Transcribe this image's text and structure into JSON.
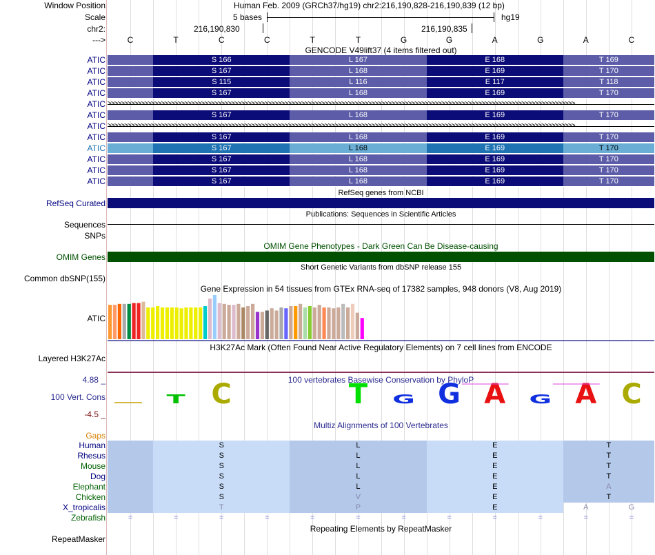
{
  "header": {
    "window_position_label": "Window Position",
    "scale_label": "Scale",
    "chr_label": "chr2:",
    "arrow_label": "--->",
    "assembly_text": "Human Feb. 2009 (GRCh37/hg19)   chr2:216,190,828-216,190,839 (12 bp)",
    "scale_text": "5 bases",
    "scale_db": "hg19",
    "pos1": "216,190,830",
    "pos2": "216,190,835"
  },
  "bases": [
    "C",
    "T",
    "C",
    "C",
    "T",
    "T",
    "G",
    "G",
    "A",
    "G",
    "A",
    "C"
  ],
  "gencode": {
    "title": "GENCODE V49lift37 (4 items filtered out)",
    "rows": [
      {
        "label": "ATIC",
        "type": "cds",
        "codons": [
          "S 166",
          "L 167",
          "E 168",
          "T 169"
        ]
      },
      {
        "label": "ATIC",
        "type": "cds",
        "codons": [
          "S 167",
          "L 168",
          "E 169",
          "T 170"
        ]
      },
      {
        "label": "ATIC",
        "type": "cds",
        "codons": [
          "S 115",
          "L 116",
          "E 117",
          "T 118"
        ]
      },
      {
        "label": "ATIC",
        "type": "cds",
        "codons": [
          "S 167",
          "L 168",
          "E 169",
          "T 170"
        ]
      },
      {
        "label": "ATIC",
        "type": "intron",
        "codons": []
      },
      {
        "label": "ATIC",
        "type": "cds",
        "codons": [
          "S 167",
          "L 168",
          "E 169",
          "T 170"
        ]
      },
      {
        "label": "ATIC",
        "type": "intron",
        "codons": []
      },
      {
        "label": "ATIC",
        "type": "cds",
        "codons": [
          "S 167",
          "L 168",
          "E 169",
          "T 170"
        ]
      },
      {
        "label": "ATIC",
        "type": "highlight",
        "codons": [
          "S 167",
          "L 168",
          "E 169",
          "T 170"
        ]
      },
      {
        "label": "ATIC",
        "type": "cds",
        "codons": [
          "S 167",
          "L 168",
          "E 169",
          "T 170"
        ]
      },
      {
        "label": "ATIC",
        "type": "cds",
        "codons": [
          "S 167",
          "L 168",
          "E 169",
          "T 170"
        ]
      },
      {
        "label": "ATIC",
        "type": "cds",
        "codons": [
          "S 167",
          "L 168",
          "E 169",
          "T 170"
        ]
      }
    ]
  },
  "refseq": {
    "title": "RefSeq genes from NCBI",
    "label": "RefSeq Curated"
  },
  "publications": {
    "title": "Publications: Sequences in Scientific Articles",
    "label": "Sequences"
  },
  "snps_label": "SNPs",
  "omim": {
    "title": "OMIM Gene Phenotypes - Dark Green Can Be Disease-causing",
    "label": "OMIM Genes"
  },
  "dbsnp": {
    "title": "Short Genetic Variants from dbSNP release 155",
    "label": "Common dbSNP(155)"
  },
  "gtex": {
    "title": "Gene Expression in 54 tissues from GTEx RNA-seq of 17382 samples, 948 donors (V8, Aug 2019)",
    "label": "ATIC",
    "bars": [
      {
        "v": 0.78,
        "c": "#ff9933"
      },
      {
        "v": 0.78,
        "c": "#ff9966"
      },
      {
        "v": 0.8,
        "c": "#ff6600"
      },
      {
        "v": 0.8,
        "c": "#aaaaaa"
      },
      {
        "v": 0.8,
        "c": "#008b45"
      },
      {
        "v": 0.82,
        "c": "#ee2222"
      },
      {
        "v": 0.82,
        "c": "#ee2222"
      },
      {
        "v": 0.85,
        "c": "#ddbb99"
      },
      {
        "v": 0.72,
        "c": "#eeee00"
      },
      {
        "v": 0.72,
        "c": "#eeee00"
      },
      {
        "v": 0.75,
        "c": "#eeee00"
      },
      {
        "v": 0.72,
        "c": "#eeee00"
      },
      {
        "v": 0.72,
        "c": "#eeee00"
      },
      {
        "v": 0.72,
        "c": "#eeee00"
      },
      {
        "v": 0.72,
        "c": "#eeee00"
      },
      {
        "v": 0.7,
        "c": "#eeee00"
      },
      {
        "v": 0.72,
        "c": "#eeee00"
      },
      {
        "v": 0.72,
        "c": "#eeee00"
      },
      {
        "v": 0.72,
        "c": "#eeee00"
      },
      {
        "v": 0.72,
        "c": "#eeee00"
      },
      {
        "v": 0.75,
        "c": "#00cccc"
      },
      {
        "v": 0.92,
        "c": "#ddbbcc"
      },
      {
        "v": 1.0,
        "c": "#99ccff"
      },
      {
        "v": 0.82,
        "c": "#ddbbcc"
      },
      {
        "v": 0.8,
        "c": "#ccaa99"
      },
      {
        "v": 0.78,
        "c": "#ccaa99"
      },
      {
        "v": 0.78,
        "c": "#ddbbcc"
      },
      {
        "v": 0.8,
        "c": "#ccaa99"
      },
      {
        "v": 0.72,
        "c": "#aa8866"
      },
      {
        "v": 0.75,
        "c": "#ccaa99"
      },
      {
        "v": 0.8,
        "c": "#ccaa99"
      },
      {
        "v": 0.62,
        "c": "#9933cc"
      },
      {
        "v": 0.62,
        "c": "#ccaa99"
      },
      {
        "v": 0.65,
        "c": "#666666"
      },
      {
        "v": 0.7,
        "c": "#ccaa99"
      },
      {
        "v": 0.65,
        "c": "#ccaa99"
      },
      {
        "v": 0.72,
        "c": "#aaaaaa"
      },
      {
        "v": 0.7,
        "c": "#6666ff"
      },
      {
        "v": 0.75,
        "c": "#ccaa99"
      },
      {
        "v": 0.75,
        "c": "#ff9900"
      },
      {
        "v": 0.8,
        "c": "#ccaa99"
      },
      {
        "v": 0.72,
        "c": "#aaddaa"
      },
      {
        "v": 0.75,
        "c": "#88cc33"
      },
      {
        "v": 0.72,
        "c": "#ccaa99"
      },
      {
        "v": 0.78,
        "c": "#ccaa99"
      },
      {
        "v": 0.72,
        "c": "#ff8855"
      },
      {
        "v": 0.72,
        "c": "#ccaa99"
      },
      {
        "v": 0.7,
        "c": "#ccaa99"
      },
      {
        "v": 0.72,
        "c": "#ccaa99"
      },
      {
        "v": 0.8,
        "c": "#bbbbbb"
      },
      {
        "v": 0.72,
        "c": "#ccaa99"
      },
      {
        "v": 0.8,
        "c": "#eeccbb"
      },
      {
        "v": 0.6,
        "c": "#ccaa99"
      },
      {
        "v": 0.48,
        "c": "#ff00ff"
      }
    ]
  },
  "h3k27ac": {
    "title": "H3K27Ac Mark (Often Found Near Active Regulatory Elements) on 7 cell lines from ENCODE",
    "label": "Layered H3K27Ac"
  },
  "cons": {
    "title": "100 vertebrates Basewise Conservation by PhyloP",
    "label": "100 Vert. Cons",
    "max": "4.88 _",
    "min": "-4.5 _",
    "logo": [
      {
        "b": "",
        "col": "#c8a000",
        "s": 0.05,
        "neg": false
      },
      {
        "b": "T",
        "col": "#00c000",
        "s": 0.45,
        "neg": false
      },
      {
        "b": "C",
        "col": "#aaaa00",
        "s": 1.0,
        "neg": false
      },
      {
        "b": "",
        "col": "#aaaa00",
        "s": 0,
        "neg": false
      },
      {
        "b": "",
        "col": "#aaaa00",
        "s": 0,
        "neg": false
      },
      {
        "b": "T",
        "col": "#00e000",
        "s": 1.0,
        "neg": false
      },
      {
        "b": "G",
        "col": "#1030e0",
        "s": 0.45,
        "neg": false
      },
      {
        "b": "G",
        "col": "#1030e0",
        "s": 1.0,
        "neg": false
      },
      {
        "b": "A",
        "col": "#e81010",
        "s": 1.0,
        "neg": false
      },
      {
        "b": "G",
        "col": "#1030e0",
        "s": 0.45,
        "neg": false
      },
      {
        "b": "A",
        "col": "#e81010",
        "s": 1.0,
        "neg": false
      },
      {
        "b": "C",
        "col": "#aaaa00",
        "s": 1.0,
        "neg": false
      }
    ]
  },
  "multiz": {
    "title": "Multiz Alignments of 100 Vertebrates",
    "gaps_label": "Gaps",
    "species": [
      {
        "name": "Human",
        "color": "#000080",
        "aa": [
          "S",
          "L",
          "E",
          "T"
        ],
        "faded": [
          false,
          false,
          false,
          false
        ]
      },
      {
        "name": "Rhesus",
        "color": "#000080",
        "aa": [
          "S",
          "L",
          "E",
          "T"
        ],
        "faded": [
          false,
          false,
          false,
          false
        ]
      },
      {
        "name": "Mouse",
        "color": "#006000",
        "aa": [
          "S",
          "L",
          "E",
          "T"
        ],
        "faded": [
          false,
          false,
          false,
          false
        ]
      },
      {
        "name": "Dog",
        "color": "#000080",
        "aa": [
          "S",
          "L",
          "E",
          "T"
        ],
        "faded": [
          false,
          false,
          false,
          false
        ]
      },
      {
        "name": "Elephant",
        "color": "#006000",
        "aa": [
          "S",
          "L",
          "E",
          "A"
        ],
        "faded": [
          false,
          false,
          false,
          true
        ]
      },
      {
        "name": "Chicken",
        "color": "#006000",
        "aa": [
          "S",
          "V",
          "E",
          "T"
        ],
        "faded": [
          false,
          true,
          false,
          false
        ]
      },
      {
        "name": "X_tropicalis",
        "color": "#000080",
        "aa": [
          "T",
          "P",
          "E",
          "A",
          "G"
        ],
        "faded": [
          true,
          true,
          false,
          true,
          true
        ]
      },
      {
        "name": "Zebrafish",
        "color": "#006000",
        "eq": "="
      }
    ]
  },
  "repeat": {
    "title": "Repeating Elements by RepeatMasker",
    "label": "RepeatMasker"
  },
  "colors": {
    "cds_dark": "#0c0c78",
    "cds_light": "#5c5ca8",
    "hl_dark": "#1f73b3",
    "hl_light": "#6aaed6",
    "navy": "#000080",
    "omim": "#005000"
  }
}
